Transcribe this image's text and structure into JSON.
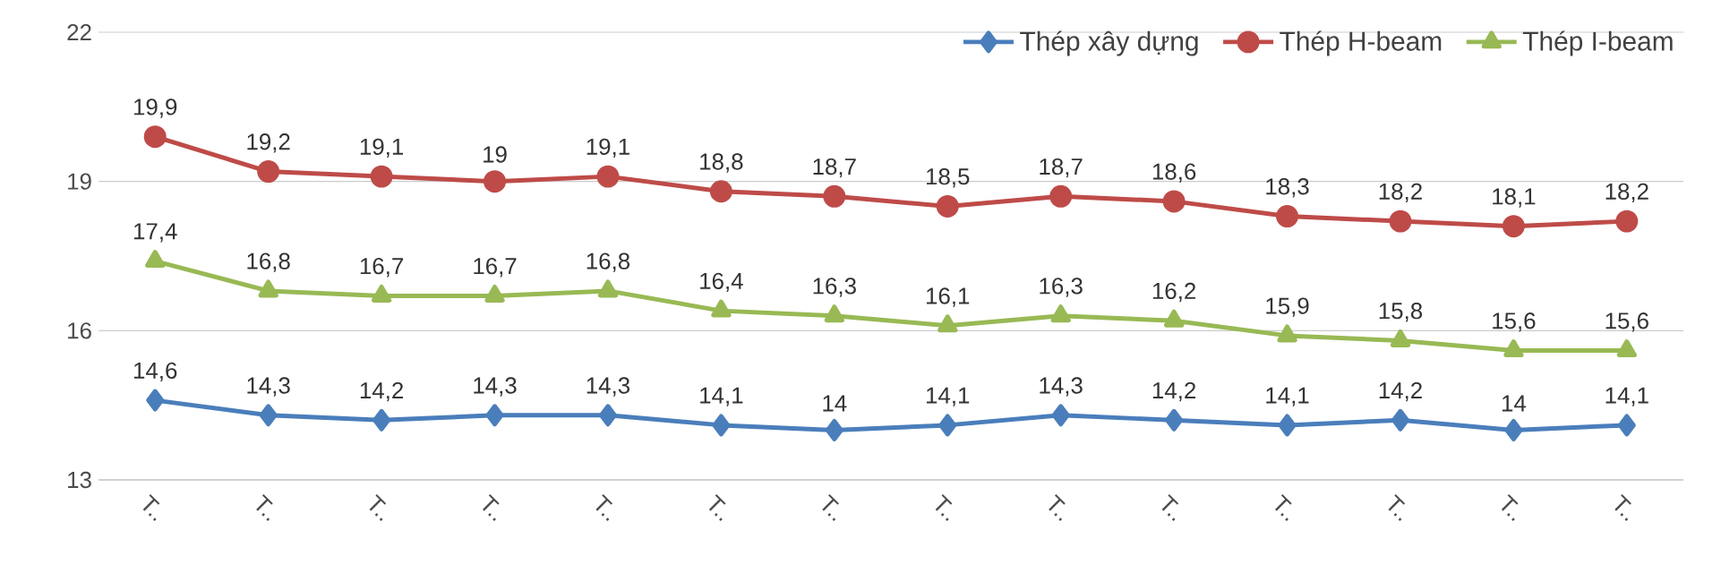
{
  "chart_data": {
    "type": "line",
    "categories": [
      "T..",
      "T..",
      "T..",
      "T..",
      "T..",
      "T..",
      "T..",
      "T..",
      "T..",
      "T..",
      "T..",
      "T..",
      "T..",
      "T.."
    ],
    "series": [
      {
        "name": "Thép xây dựng",
        "color": "#4a7ebb",
        "marker": "diamond",
        "values": [
          14.6,
          14.3,
          14.2,
          14.3,
          14.3,
          14.1,
          14,
          14.1,
          14.3,
          14.2,
          14.1,
          14.2,
          14,
          14.1
        ],
        "value_labels": [
          "14,6",
          "14,3",
          "14,2",
          "14,3",
          "14,3",
          "14,1",
          "14",
          "14,1",
          "14,3",
          "14,2",
          "14,1",
          "14,2",
          "14",
          "14,1"
        ]
      },
      {
        "name": "Thép H-beam",
        "color": "#be4b48",
        "marker": "circle",
        "values": [
          19.9,
          19.2,
          19.1,
          19,
          19.1,
          18.8,
          18.7,
          18.5,
          18.7,
          18.6,
          18.3,
          18.2,
          18.1,
          18.2
        ],
        "value_labels": [
          "19,9",
          "19,2",
          "19,1",
          "19",
          "19,1",
          "18,8",
          "18,7",
          "18,5",
          "18,7",
          "18,6",
          "18,3",
          "18,2",
          "18,1",
          "18,2"
        ]
      },
      {
        "name": "Thép I-beam",
        "color": "#98b954",
        "marker": "triangle",
        "values": [
          17.4,
          16.8,
          16.7,
          16.7,
          16.8,
          16.4,
          16.3,
          16.1,
          16.3,
          16.2,
          15.9,
          15.8,
          15.6,
          15.6
        ],
        "value_labels": [
          "17,4",
          "16,8",
          "16,7",
          "16,7",
          "16,8",
          "16,4",
          "16,3",
          "16,1",
          "16,3",
          "16,2",
          "15,9",
          "15,8",
          "15,6",
          "15,6"
        ]
      }
    ],
    "ylim": [
      13,
      22
    ],
    "yticks": [
      13,
      16,
      19,
      22
    ],
    "grid": "y",
    "legend": "top right",
    "line_style": "solid"
  }
}
